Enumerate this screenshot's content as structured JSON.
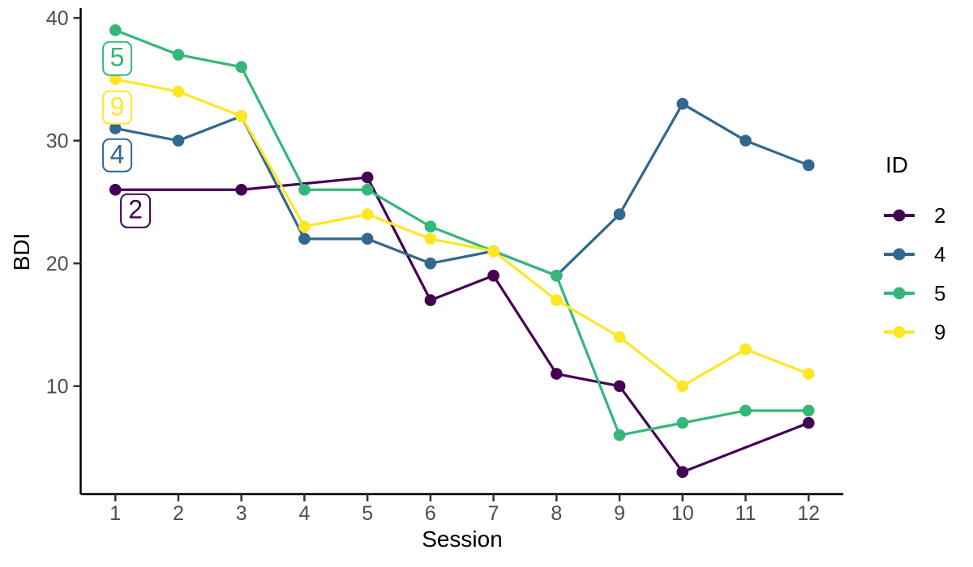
{
  "chart_data": {
    "type": "line",
    "title": "",
    "xlabel": "Session",
    "ylabel": "BDI",
    "x_ticks": [
      "1",
      "2",
      "3",
      "4",
      "5",
      "6",
      "7",
      "8",
      "9",
      "10",
      "11",
      "12"
    ],
    "x_tick_values": [
      1,
      2,
      3,
      4,
      5,
      6,
      7,
      8,
      9,
      10,
      11,
      12
    ],
    "y_ticks": [
      "10",
      "20",
      "30",
      "40"
    ],
    "y_tick_values": [
      10,
      20,
      30,
      40
    ],
    "x_domain": [
      0.45,
      12.55
    ],
    "y_domain": [
      1.2,
      40.8
    ],
    "grid": "off",
    "legend_position": "right",
    "legend_title": "ID",
    "series": [
      {
        "name": "2",
        "color": "#440154",
        "x": [
          1,
          3,
          5,
          6,
          7,
          8,
          9,
          10,
          12
        ],
        "y": [
          26,
          26,
          27,
          17,
          19,
          11,
          10,
          3,
          7
        ]
      },
      {
        "name": "4",
        "color": "#31688E",
        "x": [
          1,
          2,
          3,
          4,
          5,
          6,
          7,
          8,
          9,
          10,
          11,
          12
        ],
        "y": [
          31,
          30,
          32,
          22,
          22,
          20,
          21,
          19,
          24,
          33,
          30,
          28
        ]
      },
      {
        "name": "5",
        "color": "#35B779",
        "x": [
          1,
          2,
          3,
          4,
          5,
          6,
          7,
          8,
          9,
          10,
          11,
          12
        ],
        "y": [
          39,
          37,
          36,
          26,
          26,
          23,
          21,
          19,
          6,
          7,
          8,
          8
        ]
      },
      {
        "name": "9",
        "color": "#FDE725",
        "x": [
          1,
          2,
          3,
          4,
          5,
          6,
          7,
          8,
          9,
          10,
          11,
          12
        ],
        "y": [
          35,
          34,
          32,
          23,
          24,
          22,
          21,
          17,
          14,
          10,
          13,
          11
        ]
      }
    ],
    "annotations": [
      {
        "text": "5",
        "color": "#35B779",
        "x": 1.03,
        "y": 36.7
      },
      {
        "text": "9",
        "color": "#FDE725",
        "x": 1.03,
        "y": 32.7
      },
      {
        "text": "4",
        "color": "#31688E",
        "x": 1.03,
        "y": 28.8
      },
      {
        "text": "2",
        "color": "#440154",
        "x": 1.32,
        "y": 24.3
      }
    ],
    "axis_color": "#000000",
    "tick_color": "#333333",
    "tick_label_color": "#4D4D4D"
  }
}
